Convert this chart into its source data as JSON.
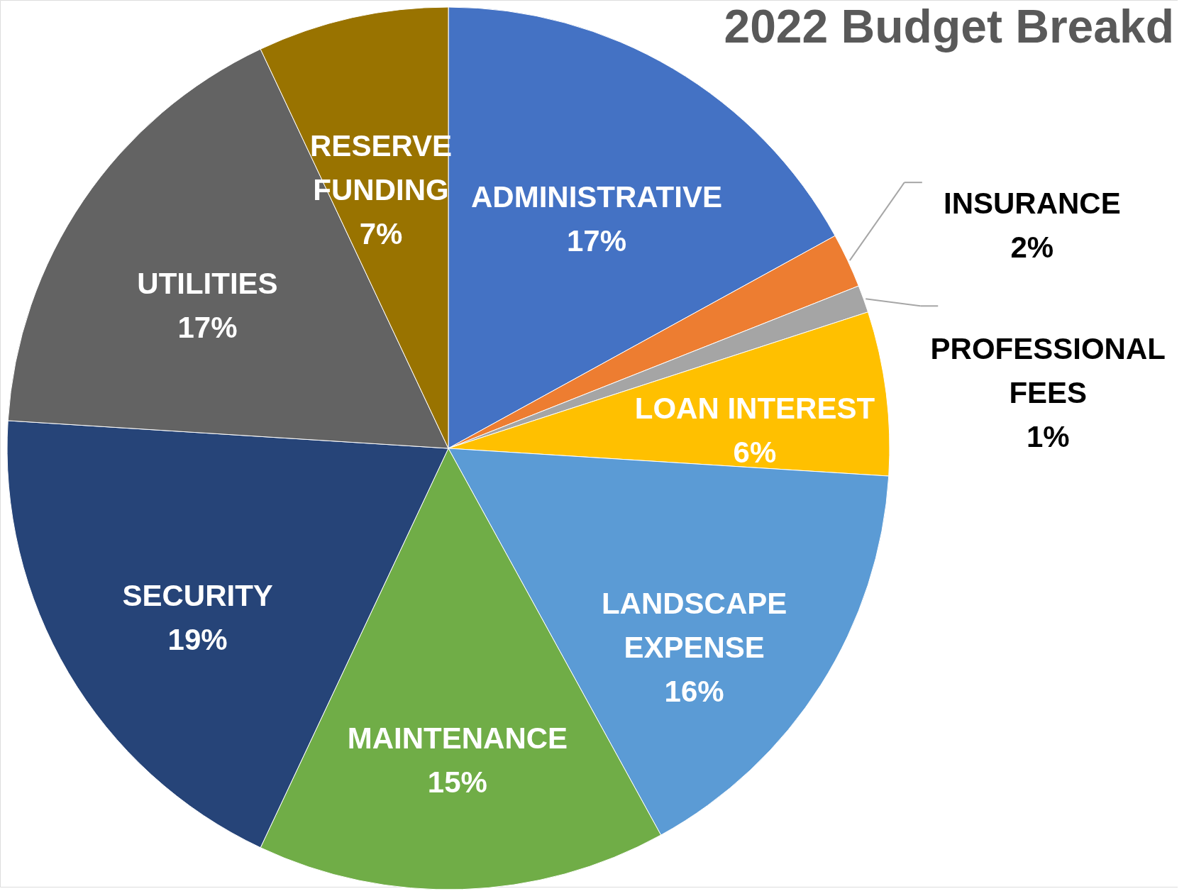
{
  "chart_data": {
    "type": "pie",
    "title": "2022 Budget Breakd",
    "categories": [
      "ADMINISTRATIVE",
      "INSURANCE",
      "PROFESSIONAL FEES",
      "LOAN INTEREST",
      "LANDSCAPE EXPENSE",
      "MAINTENANCE",
      "SECURITY",
      "UTILITIES",
      "RESERVE FUNDING"
    ],
    "values": [
      17,
      2,
      1,
      6,
      16,
      15,
      19,
      17,
      7
    ],
    "colors": [
      "#4472c4",
      "#ed7d31",
      "#a5a5a5",
      "#ffc000",
      "#5b9bd5",
      "#70ad47",
      "#264478",
      "#636363",
      "#997300"
    ],
    "value_labels": [
      "17%",
      "2%",
      "1%",
      "6%",
      "16%",
      "15%",
      "19%",
      "17%",
      "7%"
    ]
  }
}
